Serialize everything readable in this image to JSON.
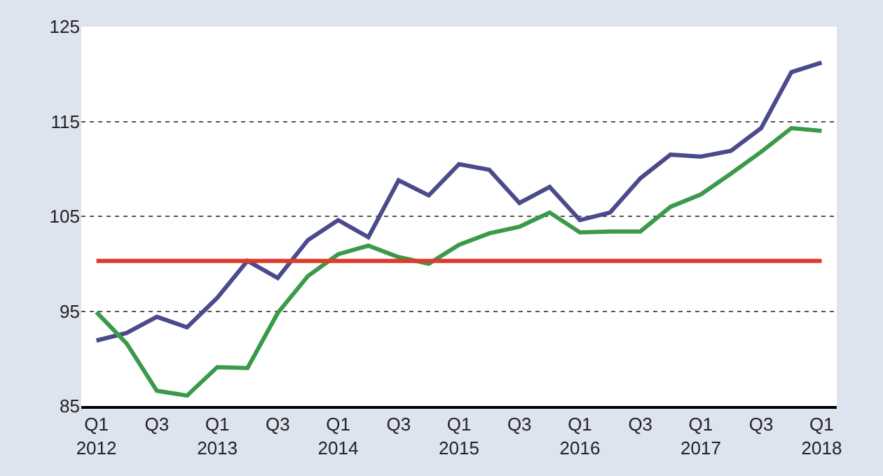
{
  "chart_data": {
    "type": "line",
    "categories": [
      "Q1\n2012",
      null,
      "Q3",
      null,
      "Q1\n2013",
      null,
      "Q3",
      null,
      "Q1\n2014",
      null,
      "Q3",
      null,
      "Q1\n2015",
      null,
      "Q3",
      null,
      "Q1\n2016",
      null,
      "Q3",
      null,
      "Q1\n2017",
      null,
      "Q3",
      null,
      "Q1\n2018"
    ],
    "series": [
      {
        "color": "#4a4a8c",
        "values": [
          91.9,
          92.7,
          94.4,
          93.3,
          96.4,
          100.3,
          98.5,
          102.5,
          104.6,
          102.8,
          108.8,
          107.2,
          110.5,
          109.9,
          106.4,
          108.1,
          104.6,
          105.4,
          109.0,
          111.5,
          111.3,
          111.9,
          114.3,
          120.2,
          121.2
        ]
      },
      {
        "color": "#3a9a4a",
        "values": [
          94.9,
          91.6,
          86.6,
          86.1,
          89.1,
          89.0,
          94.8,
          98.7,
          101.0,
          101.9,
          100.7,
          100.0,
          102.0,
          103.2,
          103.9,
          105.4,
          103.3,
          103.4,
          103.4,
          106.0,
          107.3,
          109.5,
          111.8,
          114.3,
          114.0
        ]
      }
    ],
    "ref_lines": [
      {
        "axis": "y",
        "value": 100.3,
        "color": "#e03a2a"
      }
    ],
    "ylim": [
      85,
      125
    ],
    "yticks": [
      85,
      95,
      105,
      115,
      125
    ],
    "grid": "y",
    "marker": "none",
    "line_style": "solid"
  }
}
